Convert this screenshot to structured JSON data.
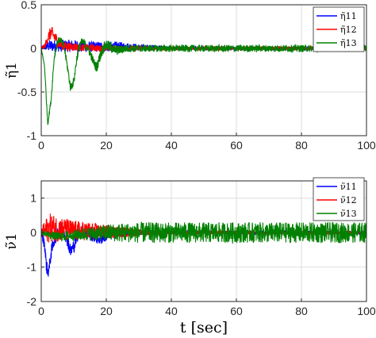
{
  "chart_data": [
    {
      "type": "line",
      "ylabel": "η̃1",
      "xlim": [
        0,
        100
      ],
      "ylim": [
        -1,
        0.5
      ],
      "xticks": [
        0,
        20,
        40,
        60,
        80,
        100
      ],
      "yticks": [
        -1,
        -0.5,
        0,
        0.5
      ],
      "xtick_labels": [
        "0",
        "20",
        "40",
        "60",
        "80",
        "100"
      ],
      "ytick_labels": [
        "-1",
        "-0.5",
        "0",
        "0.5"
      ],
      "grid": true,
      "legend_position": "top-right",
      "series": [
        {
          "name": "η̃11",
          "color": "#0000ff",
          "x": [
            0,
            1,
            2,
            3,
            4,
            6,
            8,
            10,
            12,
            15,
            18,
            22,
            26,
            30,
            35,
            40,
            50,
            60,
            70,
            80,
            90,
            100
          ],
          "y": [
            0,
            0.02,
            0.03,
            0.03,
            0.03,
            0.03,
            0.03,
            0.03,
            0.02,
            0.02,
            0.02,
            0.02,
            0.02,
            0.01,
            0.01,
            0,
            0,
            0,
            0,
            0,
            0,
            0
          ],
          "noise": [
            0.02,
            0.04,
            0.06,
            0.07,
            0.07,
            0.07,
            0.07,
            0.07,
            0.07,
            0.06,
            0.06,
            0.06,
            0.05,
            0.04,
            0.03,
            0.02,
            0.02,
            0.02,
            0.02,
            0.02,
            0.02,
            0.02
          ]
        },
        {
          "name": "η̃12",
          "color": "#ff0000",
          "x": [
            0,
            1,
            2,
            3,
            4,
            5,
            6,
            8,
            10,
            12,
            15,
            18,
            22,
            26,
            30,
            35,
            40,
            50,
            60,
            70,
            80,
            90,
            100
          ],
          "y": [
            0,
            0.02,
            0.12,
            0.18,
            0.14,
            0.08,
            0.04,
            0.02,
            0.02,
            0.01,
            0.01,
            0,
            0,
            0,
            0,
            0,
            0,
            0,
            0,
            0,
            0,
            0,
            0
          ],
          "noise": [
            0.02,
            0.03,
            0.06,
            0.08,
            0.08,
            0.07,
            0.06,
            0.05,
            0.05,
            0.04,
            0.04,
            0.04,
            0.03,
            0.03,
            0.03,
            0.02,
            0.02,
            0.02,
            0.02,
            0.02,
            0.02,
            0.02,
            0.02
          ]
        },
        {
          "name": "η̃13",
          "color": "#008000",
          "x": [
            0,
            1,
            2,
            3,
            4,
            5,
            6,
            7,
            8,
            9,
            10,
            11,
            12,
            13,
            14,
            15,
            16,
            17,
            18,
            19,
            20,
            21,
            22,
            23,
            24,
            26,
            28,
            30,
            35,
            40,
            50,
            60,
            70,
            80,
            90,
            100
          ],
          "y": [
            0,
            -0.2,
            -0.86,
            -0.6,
            -0.1,
            0.08,
            0.1,
            0.02,
            -0.2,
            -0.45,
            -0.38,
            -0.1,
            0.06,
            0.07,
            0.02,
            -0.05,
            -0.15,
            -0.22,
            -0.1,
            0.0,
            0.04,
            0.02,
            0.0,
            -0.02,
            -0.02,
            0.0,
            0.0,
            0.0,
            0.0,
            0.0,
            0.0,
            0.0,
            0.0,
            0.0,
            0.0,
            0.0
          ],
          "noise": [
            0.01,
            0.02,
            0.03,
            0.03,
            0.04,
            0.04,
            0.04,
            0.04,
            0.05,
            0.05,
            0.05,
            0.05,
            0.05,
            0.05,
            0.05,
            0.05,
            0.05,
            0.06,
            0.06,
            0.06,
            0.06,
            0.06,
            0.06,
            0.06,
            0.05,
            0.05,
            0.04,
            0.04,
            0.04,
            0.04,
            0.04,
            0.04,
            0.04,
            0.04,
            0.04,
            0.04
          ]
        }
      ]
    },
    {
      "type": "line",
      "ylabel": "ν̃1",
      "xlabel": "t [sec]",
      "xlim": [
        0,
        100
      ],
      "ylim": [
        -2,
        1.5
      ],
      "xticks": [
        0,
        20,
        40,
        60,
        80,
        100
      ],
      "yticks": [
        -2,
        -1,
        0,
        1
      ],
      "xtick_labels": [
        "0",
        "20",
        "40",
        "60",
        "80",
        "100"
      ],
      "ytick_labels": [
        "-2",
        "-1",
        "0",
        "1"
      ],
      "grid": true,
      "legend_position": "top-right",
      "series": [
        {
          "name": "ν̃11",
          "color": "#0000ff",
          "x": [
            0,
            1,
            1.5,
            2,
            2.5,
            3,
            4,
            5,
            6,
            7,
            8,
            9,
            10,
            11,
            12,
            14,
            16,
            18,
            20,
            25,
            30,
            40,
            50,
            60,
            70,
            80,
            90,
            100
          ],
          "y": [
            0,
            -0.3,
            -0.9,
            -1.15,
            -1.0,
            -0.6,
            -0.2,
            0.0,
            0.1,
            0.05,
            -0.2,
            -0.55,
            -0.4,
            -0.1,
            0.05,
            0.0,
            -0.1,
            -0.2,
            -0.1,
            0.0,
            0.0,
            0.0,
            0.0,
            0.0,
            0.0,
            0.0,
            0.0,
            0.0
          ],
          "noise": [
            0.1,
            0.2,
            0.2,
            0.2,
            0.2,
            0.2,
            0.2,
            0.2,
            0.2,
            0.2,
            0.2,
            0.2,
            0.2,
            0.2,
            0.2,
            0.2,
            0.18,
            0.16,
            0.15,
            0.12,
            0.08,
            0.05,
            0.05,
            0.05,
            0.05,
            0.05,
            0.05,
            0.05
          ]
        },
        {
          "name": "ν̃12",
          "color": "#ff0000",
          "x": [
            0,
            1,
            2,
            3,
            4,
            6,
            8,
            10,
            12,
            15,
            18,
            22,
            26,
            30,
            35,
            40,
            50,
            60,
            70,
            80,
            90,
            100
          ],
          "y": [
            0,
            0.05,
            0.1,
            0.15,
            0.12,
            0.1,
            0.08,
            0.06,
            0.05,
            0.04,
            0.03,
            0.02,
            0.01,
            0.0,
            0.0,
            0.0,
            0.0,
            0.0,
            0.0,
            0.0,
            0.0,
            0.0
          ],
          "noise": [
            0.1,
            0.3,
            0.4,
            0.42,
            0.4,
            0.35,
            0.32,
            0.3,
            0.28,
            0.26,
            0.22,
            0.18,
            0.14,
            0.1,
            0.06,
            0.04,
            0.04,
            0.04,
            0.04,
            0.04,
            0.04,
            0.04
          ]
        },
        {
          "name": "ν̃13",
          "color": "#008000",
          "x": [
            0,
            2,
            4,
            6,
            8,
            10,
            12,
            15,
            18,
            20,
            25,
            30,
            35,
            40,
            50,
            60,
            70,
            80,
            90,
            100
          ],
          "y": [
            0,
            -0.05,
            -0.1,
            -0.12,
            -0.1,
            -0.08,
            -0.05,
            -0.03,
            -0.02,
            0.0,
            0.0,
            0.0,
            0.0,
            0.0,
            0.0,
            0.0,
            0.0,
            0.0,
            0.0,
            0.0
          ],
          "noise": [
            0.05,
            0.1,
            0.12,
            0.14,
            0.15,
            0.16,
            0.18,
            0.2,
            0.22,
            0.25,
            0.28,
            0.3,
            0.3,
            0.3,
            0.3,
            0.3,
            0.3,
            0.3,
            0.3,
            0.3
          ]
        }
      ]
    }
  ]
}
